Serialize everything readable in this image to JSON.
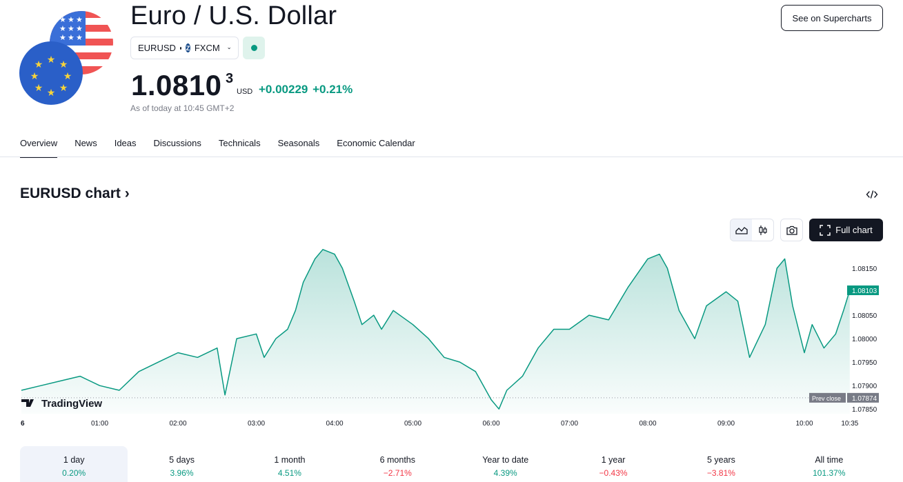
{
  "header": {
    "title": "Euro / U.S. Dollar",
    "symbol": "EURUSD",
    "exchange": "FXCM",
    "price_main": "1.0810",
    "price_sup": "3",
    "currency": "USD",
    "change": "+0.00229 +0.21%",
    "as_of": "As of today at 10:45 GMT+2",
    "supercharts_label": "See on Supercharts"
  },
  "tabs": [
    "Overview",
    "News",
    "Ideas",
    "Discussions",
    "Technicals",
    "Seasonals",
    "Economic Calendar"
  ],
  "chart_section": {
    "heading": "EURUSD chart",
    "full_chart_label": "Full chart",
    "brand": "TradingView",
    "prev_close_label": "Prev close"
  },
  "colors": {
    "accent": "#089981",
    "negative": "#f23645",
    "text": "#131722"
  },
  "chart_data": {
    "type": "area",
    "x_tick_labels": [
      "6",
      "01:00",
      "02:00",
      "03:00",
      "04:00",
      "05:00",
      "06:00",
      "07:00",
      "08:00",
      "09:00",
      "10:00",
      "10:35"
    ],
    "y_tick_labels": [
      "1.08150",
      "1.08050",
      "1.08000",
      "1.07950",
      "1.07900",
      "1.07850"
    ],
    "ylim": [
      1.0784,
      1.082
    ],
    "last_price": "1.08103",
    "prev_close": "1.07874",
    "x_hours": [
      0.0,
      0.25,
      0.5,
      0.75,
      1.0,
      1.25,
      1.5,
      1.75,
      2.0,
      2.25,
      2.5,
      2.6,
      2.75,
      3.0,
      3.1,
      3.25,
      3.4,
      3.5,
      3.6,
      3.75,
      3.85,
      4.0,
      4.1,
      4.25,
      4.35,
      4.5,
      4.6,
      4.75,
      5.0,
      5.2,
      5.4,
      5.6,
      5.8,
      6.0,
      6.1,
      6.2,
      6.4,
      6.6,
      6.8,
      7.0,
      7.25,
      7.5,
      7.75,
      8.0,
      8.15,
      8.25,
      8.4,
      8.6,
      8.75,
      9.0,
      9.15,
      9.3,
      9.5,
      9.65,
      9.75,
      9.85,
      10.0,
      10.1,
      10.25,
      10.4,
      10.5,
      10.58
    ],
    "values": [
      1.0789,
      1.079,
      1.0791,
      1.0792,
      1.079,
      1.0789,
      1.0793,
      1.0795,
      1.0797,
      1.0796,
      1.0798,
      1.0788,
      1.08,
      1.0801,
      1.0796,
      1.08,
      1.0802,
      1.0806,
      1.0812,
      1.0817,
      1.0819,
      1.0818,
      1.0815,
      1.0808,
      1.0803,
      1.0805,
      1.0802,
      1.0806,
      1.0803,
      1.08,
      1.0796,
      1.0795,
      1.0793,
      1.0787,
      1.0785,
      1.0789,
      1.0792,
      1.0798,
      1.0802,
      1.0802,
      1.0805,
      1.0804,
      1.0811,
      1.0817,
      1.0818,
      1.0815,
      1.0806,
      1.08,
      1.0807,
      1.081,
      1.0808,
      1.0796,
      1.0803,
      1.0815,
      1.0817,
      1.0807,
      1.0797,
      1.0803,
      1.0798,
      1.0801,
      1.0806,
      1.08103
    ],
    "periods": [
      {
        "label": "1 day",
        "value": "0.20%",
        "sign": "pos"
      },
      {
        "label": "5 days",
        "value": "3.96%",
        "sign": "pos"
      },
      {
        "label": "1 month",
        "value": "4.51%",
        "sign": "pos"
      },
      {
        "label": "6 months",
        "value": "−2.71%",
        "sign": "neg"
      },
      {
        "label": "Year to date",
        "value": "4.39%",
        "sign": "pos"
      },
      {
        "label": "1 year",
        "value": "−0.43%",
        "sign": "neg"
      },
      {
        "label": "5 years",
        "value": "−3.81%",
        "sign": "neg"
      },
      {
        "label": "All time",
        "value": "101.37%",
        "sign": "pos"
      }
    ]
  }
}
